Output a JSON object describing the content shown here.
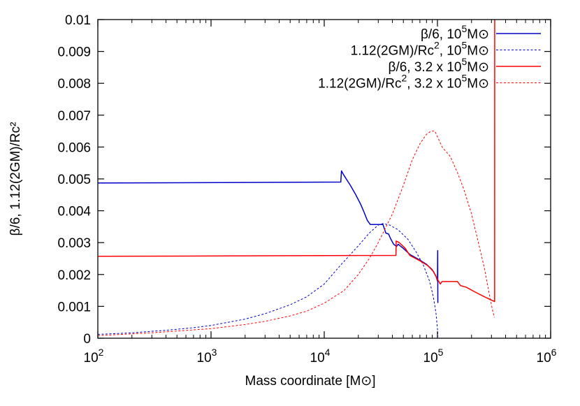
{
  "chart_data": {
    "type": "line",
    "xscale": "log",
    "xlim": [
      100,
      1000000
    ],
    "ylim": [
      0,
      0.01
    ],
    "grid": false,
    "legend_position": "top-right",
    "xlabel": "Mass coordinate [M⊙]",
    "ylabel": "β/6, 1.12(2GM)/Rc²",
    "x_ticks": [
      {
        "value": 100,
        "base": "10",
        "exp": "2"
      },
      {
        "value": 1000,
        "base": "10",
        "exp": "3"
      },
      {
        "value": 10000,
        "base": "10",
        "exp": "4"
      },
      {
        "value": 100000,
        "base": "10",
        "exp": "5"
      },
      {
        "value": 1000000,
        "base": "10",
        "exp": "6"
      }
    ],
    "y_ticks": [
      {
        "value": 0,
        "label": "0"
      },
      {
        "value": 0.001,
        "label": "0.001"
      },
      {
        "value": 0.002,
        "label": "0.002"
      },
      {
        "value": 0.003,
        "label": "0.003"
      },
      {
        "value": 0.004,
        "label": "0.004"
      },
      {
        "value": 0.005,
        "label": "0.005"
      },
      {
        "value": 0.006,
        "label": "0.006"
      },
      {
        "value": 0.007,
        "label": "0.007"
      },
      {
        "value": 0.008,
        "label": "0.008"
      },
      {
        "value": 0.009,
        "label": "0.009"
      },
      {
        "value": 0.01,
        "label": "0.01"
      }
    ],
    "series": [
      {
        "name": "β/6, 10⁵M⊙",
        "legend": {
          "pre": "β/6, 10",
          "sup": "5",
          "post": "M⊙",
          "sup2": "",
          "post2": ""
        },
        "color": "#0000cc",
        "style": "solid",
        "points": [
          [
            100,
            0.00487
          ],
          [
            14000,
            0.0049
          ],
          [
            14200,
            0.00525
          ],
          [
            15000,
            0.0051
          ],
          [
            17000,
            0.0048
          ],
          [
            19000,
            0.0045
          ],
          [
            21000,
            0.0042
          ],
          [
            22500,
            0.00395
          ],
          [
            24000,
            0.0037
          ],
          [
            25500,
            0.00357
          ],
          [
            33000,
            0.00357
          ],
          [
            35000,
            0.0033
          ],
          [
            37000,
            0.00327
          ],
          [
            38500,
            0.00313
          ],
          [
            41000,
            0.00295
          ],
          [
            43500,
            0.00288
          ],
          [
            45000,
            0.00295
          ],
          [
            50000,
            0.00282
          ],
          [
            57000,
            0.00263
          ],
          [
            70000,
            0.00245
          ],
          [
            80000,
            0.00232
          ],
          [
            90000,
            0.00215
          ],
          [
            97000,
            0.00195
          ],
          [
            100000,
            0.0018
          ],
          [
            100500,
            0.00275
          ],
          [
            100800,
            0.00112
          ],
          [
            101000,
            0.00115
          ]
        ]
      },
      {
        "name": "1.12(2GM)/Rc², 10⁵M⊙",
        "legend": {
          "pre": "1.12(2GM)/Rc",
          "sup": "2",
          "post": ", 10",
          "sup2": "5",
          "post2": "M⊙"
        },
        "color": "#0000cc",
        "style": "dashed",
        "points": [
          [
            100,
            0.00012
          ],
          [
            200,
            0.00017
          ],
          [
            400,
            0.00025
          ],
          [
            700,
            0.00033
          ],
          [
            1000,
            0.0004
          ],
          [
            2000,
            0.0006
          ],
          [
            3000,
            0.00077
          ],
          [
            5000,
            0.00105
          ],
          [
            7000,
            0.0013
          ],
          [
            10000,
            0.0017
          ],
          [
            14000,
            0.0023
          ],
          [
            20000,
            0.0029
          ],
          [
            25000,
            0.0033
          ],
          [
            30000,
            0.00355
          ],
          [
            33000,
            0.0036
          ],
          [
            38000,
            0.00355
          ],
          [
            45000,
            0.0034
          ],
          [
            55000,
            0.0031
          ],
          [
            65000,
            0.0027
          ],
          [
            75000,
            0.0023
          ],
          [
            85000,
            0.0018
          ],
          [
            92000,
            0.0013
          ],
          [
            97000,
            0.0008
          ],
          [
            100000,
            0.0003
          ],
          [
            101000,
            5e-05
          ]
        ]
      },
      {
        "name": "β/6, 3.2 x 10⁵M⊙",
        "legend": {
          "pre": "β/6, 3.2 x 10",
          "sup": "5",
          "post": "M⊙",
          "sup2": "",
          "post2": ""
        },
        "color": "#ff0000",
        "style": "solid",
        "points": [
          [
            100,
            0.00257
          ],
          [
            43000,
            0.0026
          ],
          [
            43200,
            0.00305
          ],
          [
            46000,
            0.003
          ],
          [
            52000,
            0.00282
          ],
          [
            57000,
            0.0026
          ],
          [
            70000,
            0.00243
          ],
          [
            82000,
            0.00228
          ],
          [
            92000,
            0.0021
          ],
          [
            100000,
            0.00185
          ],
          [
            106000,
            0.0017
          ],
          [
            110000,
            0.00178
          ],
          [
            150000,
            0.00178
          ],
          [
            160000,
            0.00165
          ],
          [
            180000,
            0.0016
          ],
          [
            215000,
            0.00145
          ],
          [
            260000,
            0.0013
          ],
          [
            320000,
            0.00115
          ],
          [
            320500,
            0.01
          ]
        ]
      },
      {
        "name": "1.12(2GM)/Rc², 3.2 x 10⁵M⊙",
        "legend": {
          "pre": "1.12(2GM)/Rc",
          "sup": "2",
          "post": ", 3.2 x 10",
          "sup2": "5",
          "post2": "M⊙"
        },
        "color": "#ff0000",
        "style": "dashed",
        "points": [
          [
            100,
            8e-05
          ],
          [
            300,
            0.00017
          ],
          [
            1000,
            0.0003
          ],
          [
            2000,
            0.00043
          ],
          [
            3000,
            0.00053
          ],
          [
            5000,
            0.0007
          ],
          [
            7000,
            0.00085
          ],
          [
            10000,
            0.0011
          ],
          [
            15000,
            0.0015
          ],
          [
            20000,
            0.002
          ],
          [
            25000,
            0.0025
          ],
          [
            30000,
            0.003
          ],
          [
            40000,
            0.0039
          ],
          [
            50000,
            0.0048
          ],
          [
            60000,
            0.0056
          ],
          [
            70000,
            0.0061
          ],
          [
            80000,
            0.0064
          ],
          [
            88000,
            0.0065
          ],
          [
            95000,
            0.0065
          ],
          [
            110000,
            0.006
          ],
          [
            130000,
            0.0057
          ],
          [
            150000,
            0.0052
          ],
          [
            170000,
            0.0047
          ],
          [
            200000,
            0.0039
          ],
          [
            230000,
            0.003
          ],
          [
            260000,
            0.0022
          ],
          [
            290000,
            0.0013
          ],
          [
            310000,
            0.0008
          ],
          [
            320000,
            0.00065
          ]
        ]
      }
    ]
  }
}
